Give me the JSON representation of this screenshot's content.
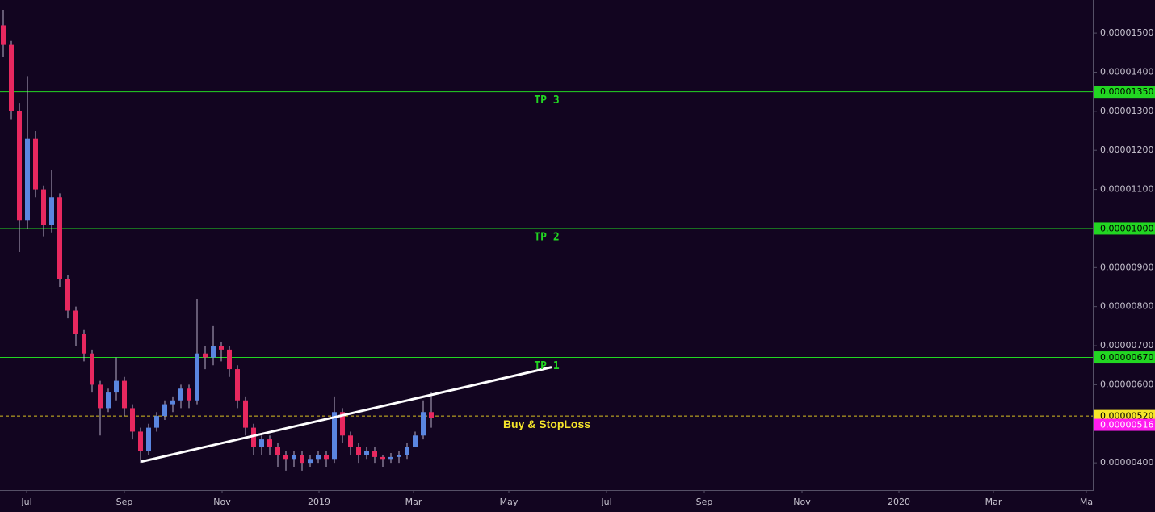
{
  "chart_data": {
    "type": "candlestick",
    "x": [
      2,
      7,
      12,
      17,
      22,
      27,
      32,
      37,
      42,
      47,
      52,
      57,
      62,
      67,
      72,
      77,
      82,
      87,
      92,
      97,
      102,
      107,
      112,
      117,
      122,
      127,
      132,
      137,
      142,
      147,
      152,
      157,
      162,
      167,
      172,
      177,
      182,
      187,
      192,
      197,
      202,
      207,
      212,
      217,
      222,
      227,
      232,
      237,
      242,
      247,
      252,
      257,
      262,
      267
    ],
    "open": [
      1.52e-05,
      1.47e-05,
      1.3e-05,
      1.02e-05,
      1.23e-05,
      1.1e-05,
      1.01e-05,
      1.08e-05,
      8.7e-06,
      7.9e-06,
      7.3e-06,
      6.8e-06,
      6e-06,
      5.4e-06,
      5.8e-06,
      6.1e-06,
      5.4e-06,
      4.8e-06,
      4.3e-06,
      4.9e-06,
      5.2e-06,
      5.5e-06,
      5.6e-06,
      5.9e-06,
      5.6e-06,
      6.8e-06,
      6.7e-06,
      7e-06,
      6.9e-06,
      6.4e-06,
      5.6e-06,
      4.9e-06,
      4.4e-06,
      4.6e-06,
      4.4e-06,
      4.2e-06,
      4.1e-06,
      4.2e-06,
      4e-06,
      4.1e-06,
      4.2e-06,
      4.1e-06,
      5.3e-06,
      4.7e-06,
      4.4e-06,
      4.2e-06,
      4.3e-06,
      4.15e-06,
      4.1e-06,
      4.15e-06,
      4.2e-06,
      4.4e-06,
      4.7e-06,
      5.3e-06
    ],
    "high": [
      1.56e-05,
      1.48e-05,
      1.32e-05,
      1.39e-05,
      1.25e-05,
      1.11e-05,
      1.15e-05,
      1.09e-05,
      8.8e-06,
      8e-06,
      7.4e-06,
      6.9e-06,
      6.1e-06,
      5.9e-06,
      6.7e-06,
      6.2e-06,
      5.5e-06,
      4.9e-06,
      5e-06,
      5.3e-06,
      5.6e-06,
      5.7e-06,
      6e-06,
      6e-06,
      8.2e-06,
      7e-06,
      7.5e-06,
      7.1e-06,
      7e-06,
      6.5e-06,
      5.7e-06,
      5e-06,
      4.7e-06,
      4.7e-06,
      4.5e-06,
      4.3e-06,
      4.3e-06,
      4.3e-06,
      4.2e-06,
      4.3e-06,
      4.3e-06,
      5.7e-06,
      5.4e-06,
      4.8e-06,
      4.5e-06,
      4.4e-06,
      4.4e-06,
      4.2e-06,
      4.25e-06,
      4.3e-06,
      4.5e-06,
      4.8e-06,
      5.6e-06,
      5.8e-06
    ],
    "low": [
      1.44e-05,
      1.28e-05,
      9.4e-06,
      1e-05,
      1.08e-05,
      9.8e-06,
      9.9e-06,
      8.5e-06,
      7.7e-06,
      7e-06,
      6.6e-06,
      5.8e-06,
      4.7e-06,
      5.3e-06,
      5.6e-06,
      5.2e-06,
      4.6e-06,
      4e-06,
      4.2e-06,
      4.8e-06,
      5.1e-06,
      5.3e-06,
      5.4e-06,
      5.4e-06,
      5.5e-06,
      6.4e-06,
      6.5e-06,
      6.6e-06,
      6.2e-06,
      5.4e-06,
      4.7e-06,
      4.2e-06,
      4.2e-06,
      4.2e-06,
      3.9e-06,
      3.8e-06,
      3.9e-06,
      3.8e-06,
      3.9e-06,
      4e-06,
      3.9e-06,
      4e-06,
      4.5e-06,
      4.2e-06,
      4e-06,
      4.1e-06,
      4e-06,
      3.9e-06,
      4e-06,
      4e-06,
      4.1e-06,
      4.4e-06,
      4.6e-06,
      4.9e-06
    ],
    "close": [
      1.47e-05,
      1.3e-05,
      1.02e-05,
      1.23e-05,
      1.1e-05,
      1.01e-05,
      1.08e-05,
      8.7e-06,
      7.9e-06,
      7.3e-06,
      6.8e-06,
      6e-06,
      5.4e-06,
      5.8e-06,
      6.1e-06,
      5.4e-06,
      4.8e-06,
      4.3e-06,
      4.9e-06,
      5.2e-06,
      5.5e-06,
      5.6e-06,
      5.9e-06,
      5.6e-06,
      6.8e-06,
      6.7e-06,
      7e-06,
      6.9e-06,
      6.4e-06,
      5.6e-06,
      4.9e-06,
      4.4e-06,
      4.6e-06,
      4.4e-06,
      4.2e-06,
      4.1e-06,
      4.2e-06,
      4e-06,
      4.1e-06,
      4.2e-06,
      4.1e-06,
      5.3e-06,
      4.7e-06,
      4.4e-06,
      4.2e-06,
      4.3e-06,
      4.15e-06,
      4.1e-06,
      4.15e-06,
      4.2e-06,
      4.4e-06,
      4.7e-06,
      5.3e-06,
      5.16e-06
    ],
    "up_color": "#5a86e0",
    "down_color": "#e8285f",
    "xlim": [
      0,
      676.5
    ],
    "xticks": [
      {
        "value": 16.5,
        "label": "Jul"
      },
      {
        "value": 77,
        "label": "Sep"
      },
      {
        "value": 137.5,
        "label": "Nov"
      },
      {
        "value": 197.5,
        "label": "2019"
      },
      {
        "value": 256,
        "label": "Mar"
      },
      {
        "value": 315,
        "label": "May"
      },
      {
        "value": 375.5,
        "label": "Jul"
      },
      {
        "value": 436,
        "label": "Sep"
      },
      {
        "value": 496.5,
        "label": "Nov"
      },
      {
        "value": 556.5,
        "label": "2020"
      },
      {
        "value": 615,
        "label": "Mar"
      },
      {
        "value": 672.5,
        "label": "Ma"
      }
    ],
    "ylim": [
      3.3e-06,
      1.585e-05
    ],
    "yticks": [
      {
        "value": 4e-06,
        "label": "0.00000400"
      },
      {
        "value": 5e-06,
        "label": "0.00000500"
      },
      {
        "value": 6e-06,
        "label": "0.00000600"
      },
      {
        "value": 7e-06,
        "label": "0.00000700"
      },
      {
        "value": 8e-06,
        "label": "0.00000800"
      },
      {
        "value": 9e-06,
        "label": "0.00000900"
      },
      {
        "value": 1e-05,
        "label": "0.00001000"
      },
      {
        "value": 1.1e-05,
        "label": "0.00001100"
      },
      {
        "value": 1.2e-05,
        "label": "0.00001200"
      },
      {
        "value": 1.3e-05,
        "label": "0.00001300"
      },
      {
        "value": 1.4e-05,
        "label": "0.00001400"
      },
      {
        "value": 1.5e-05,
        "label": "0.00001500"
      }
    ],
    "levels": {
      "names": [
        "TP 3",
        "TP 2",
        "TP 1",
        "Buy & StopLoss"
      ],
      "values": [
        1.35e-05,
        1e-05,
        6.7e-06,
        5.2e-06
      ],
      "value_labels": [
        "0.00001350",
        "0.00001000",
        "0.00000670",
        "0.00000520"
      ],
      "colors": [
        "#22d622",
        "#22d622",
        "#22d622",
        "#f5e52a"
      ],
      "dashed": [
        false,
        false,
        false,
        true
      ]
    },
    "last_price": {
      "value": 5.16e-06,
      "label": "0.00000516",
      "color": "#ff1cf0"
    },
    "trendline": {
      "x": [
        87.5,
        341.5
      ],
      "values": [
        4.03e-06,
        6.45e-06
      ],
      "color": "#ffffff"
    }
  }
}
